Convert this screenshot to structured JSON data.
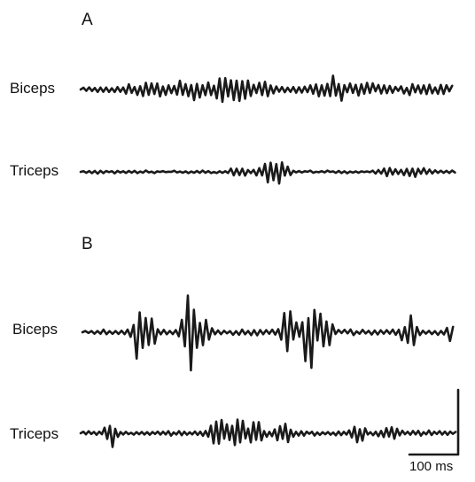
{
  "panels": [
    {
      "letter": "A",
      "traces": [
        {
          "label": "Biceps"
        },
        {
          "label": "Triceps"
        }
      ]
    },
    {
      "letter": "B",
      "traces": [
        {
          "label": "Biceps"
        },
        {
          "label": "Triceps"
        }
      ]
    }
  ],
  "scale_bar": {
    "label": "100 ms"
  },
  "colors": {
    "trace": "#1a1a1a",
    "background": "#ffffff"
  }
}
